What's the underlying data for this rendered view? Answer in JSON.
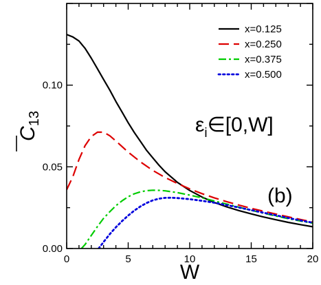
{
  "chart_data": {
    "type": "line",
    "xlabel": "W",
    "ylabel_main": "C",
    "ylabel_sub": "13",
    "xlim": [
      0,
      20
    ],
    "ylim": [
      0,
      0.15
    ],
    "xticks": [
      0,
      5,
      10,
      15,
      20
    ],
    "xtick_labels": [
      "0",
      "5",
      "10",
      "15",
      "20"
    ],
    "yticks": [
      0,
      0.05,
      0.1
    ],
    "ytick_labels": [
      "0.00",
      "0.05",
      "0.10"
    ],
    "grid": false,
    "legend_position": "top-right",
    "annotations": {
      "interval": {
        "eps": "ε",
        "sub": "i",
        "rest": "∈[0,W]"
      },
      "panel": "(b)"
    },
    "series": [
      {
        "name": "x=0.125",
        "color": "#000000",
        "dash": "solid",
        "x": [
          0,
          0.5,
          1,
          1.5,
          2,
          2.5,
          3,
          3.5,
          4,
          4.5,
          5,
          5.5,
          6,
          6.5,
          7,
          7.5,
          8,
          9,
          10,
          11,
          12,
          13,
          14,
          15,
          16,
          17,
          18,
          19,
          20
        ],
        "y": [
          0.131,
          0.1295,
          0.127,
          0.1225,
          0.1165,
          0.11,
          0.1035,
          0.097,
          0.09,
          0.0835,
          0.077,
          0.071,
          0.0655,
          0.06,
          0.0555,
          0.051,
          0.047,
          0.0405,
          0.0355,
          0.0315,
          0.0282,
          0.0255,
          0.0232,
          0.0212,
          0.0193,
          0.0176,
          0.016,
          0.0146,
          0.0133
        ]
      },
      {
        "name": "x=0.250",
        "color": "#dd0000",
        "dash": "dashed",
        "x": [
          0,
          0.5,
          1,
          1.5,
          2,
          2.5,
          3,
          3.5,
          4,
          5,
          6,
          7,
          8,
          9,
          10,
          11,
          12,
          13,
          14,
          15,
          16,
          17,
          18,
          19,
          20
        ],
        "y": [
          0.036,
          0.044,
          0.0545,
          0.063,
          0.0685,
          0.0712,
          0.0712,
          0.069,
          0.0658,
          0.059,
          0.053,
          0.0478,
          0.0435,
          0.0398,
          0.0365,
          0.0336,
          0.031,
          0.0287,
          0.0266,
          0.0246,
          0.0228,
          0.0211,
          0.0194,
          0.0178,
          0.0162
        ]
      },
      {
        "name": "x=0.375",
        "color": "#00cc00",
        "dash": "dashdot",
        "x": [
          1.2,
          1.5,
          2,
          2.5,
          3,
          3.5,
          4,
          4.5,
          5,
          5.5,
          6,
          6.5,
          7,
          7.5,
          8,
          9,
          10,
          11,
          12,
          13,
          14,
          15,
          16,
          17,
          18,
          19,
          20
        ],
        "y": [
          0,
          0.0025,
          0.008,
          0.0135,
          0.0185,
          0.0225,
          0.0262,
          0.0292,
          0.0317,
          0.0335,
          0.0347,
          0.0354,
          0.0357,
          0.0356,
          0.0353,
          0.0342,
          0.0327,
          0.031,
          0.0291,
          0.0272,
          0.0253,
          0.0234,
          0.0216,
          0.0199,
          0.0183,
          0.0168,
          0.0155
        ]
      },
      {
        "name": "x=0.500",
        "color": "#0000dd",
        "dash": "dotted",
        "x": [
          2.6,
          3,
          3.5,
          4,
          4.5,
          5,
          5.5,
          6,
          6.5,
          7,
          7.5,
          8,
          8.5,
          9,
          10,
          11,
          12,
          13,
          14,
          15,
          16,
          17,
          18,
          19,
          20
        ],
        "y": [
          0,
          0.004,
          0.0088,
          0.013,
          0.0168,
          0.0202,
          0.0232,
          0.0258,
          0.0279,
          0.0295,
          0.0305,
          0.031,
          0.0311,
          0.0309,
          0.0302,
          0.0292,
          0.028,
          0.0266,
          0.0251,
          0.0235,
          0.0219,
          0.0203,
          0.0187,
          0.0172,
          0.0158
        ]
      }
    ]
  }
}
